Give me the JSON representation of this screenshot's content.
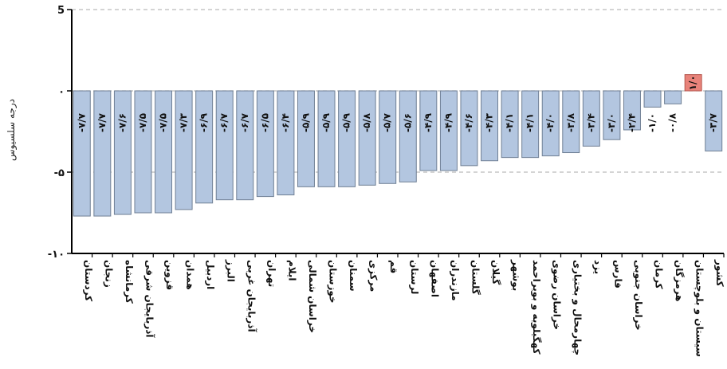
{
  "chart_data": {
    "type": "bar",
    "ylabel": "درجه سلسیوس",
    "ylim": [
      -10,
      5
    ],
    "yticks": [
      5,
      0,
      -5,
      -10
    ],
    "ytick_labels": [
      "5",
      "۰",
      "-۵",
      "-۱۰"
    ],
    "grid": "horizontal-dashed",
    "categories": [
      "کردستان",
      "زنجان",
      "کرمانشاه",
      "آذربایجان شرقی",
      "قزوین",
      "همدان",
      "اردبیل",
      "البرز",
      "آذربایجان غربی",
      "تهران",
      "ایلام",
      "خراسان شمالی",
      "خوزستان",
      "سمنان",
      "مرکزی",
      "قم",
      "لرستان",
      "اصفهان",
      "مازندران",
      "گلستان",
      "گیلان",
      "بوشهر",
      "کهگیلویه و بویراحمد",
      "خراسان رضوی",
      "چهارمحال و بختیاری",
      "یزد",
      "فارس",
      "خراسان جنوبی",
      "کرمان",
      "هرمزگان",
      "سیستان و بلوچستان",
      "کشور"
    ],
    "values": [
      -7.7,
      -7.7,
      -7.6,
      -7.5,
      -7.5,
      -7.3,
      -6.9,
      -6.7,
      -6.7,
      -6.5,
      -6.4,
      -5.9,
      -5.9,
      -5.9,
      -5.8,
      -5.7,
      -5.6,
      -4.9,
      -4.9,
      -4.6,
      -4.3,
      -4.1,
      -4.1,
      -4.0,
      -3.8,
      -3.4,
      -3.0,
      -2.4,
      -1.0,
      -0.8,
      1.0,
      -3.7
    ],
    "value_labels": [
      "-۷/۷",
      "-۷/۷",
      "-۷/۶",
      "-۷/۵",
      "-۷/۵",
      "-۷/۳",
      "-۶/۹",
      "-۶/۷",
      "-۶/۷",
      "-۶/۵",
      "-۶/۴",
      "-۵/۹",
      "-۵/۹",
      "-۵/۹",
      "-۵/۸",
      "-۵/۷",
      "-۵/۶",
      "-۴/۹",
      "-۴/۹",
      "-۴/۶",
      "-۴/۳",
      "-۴/۱",
      "-۴/۱",
      "-۴/۰",
      "-۳/۸",
      "-۳/۴",
      "-۳/۰",
      "-۲/۴",
      "-۱/۰",
      "-۰/۸",
      "۱/۰",
      "-۳/۷"
    ],
    "colors": {
      "negative_fill": "#b3c6e0",
      "negative_stroke": "#6f7f94",
      "positive_fill": "#e8837a",
      "positive_stroke": "#b5564d",
      "axis": "#000000",
      "grid": "#bbbbbb"
    }
  }
}
